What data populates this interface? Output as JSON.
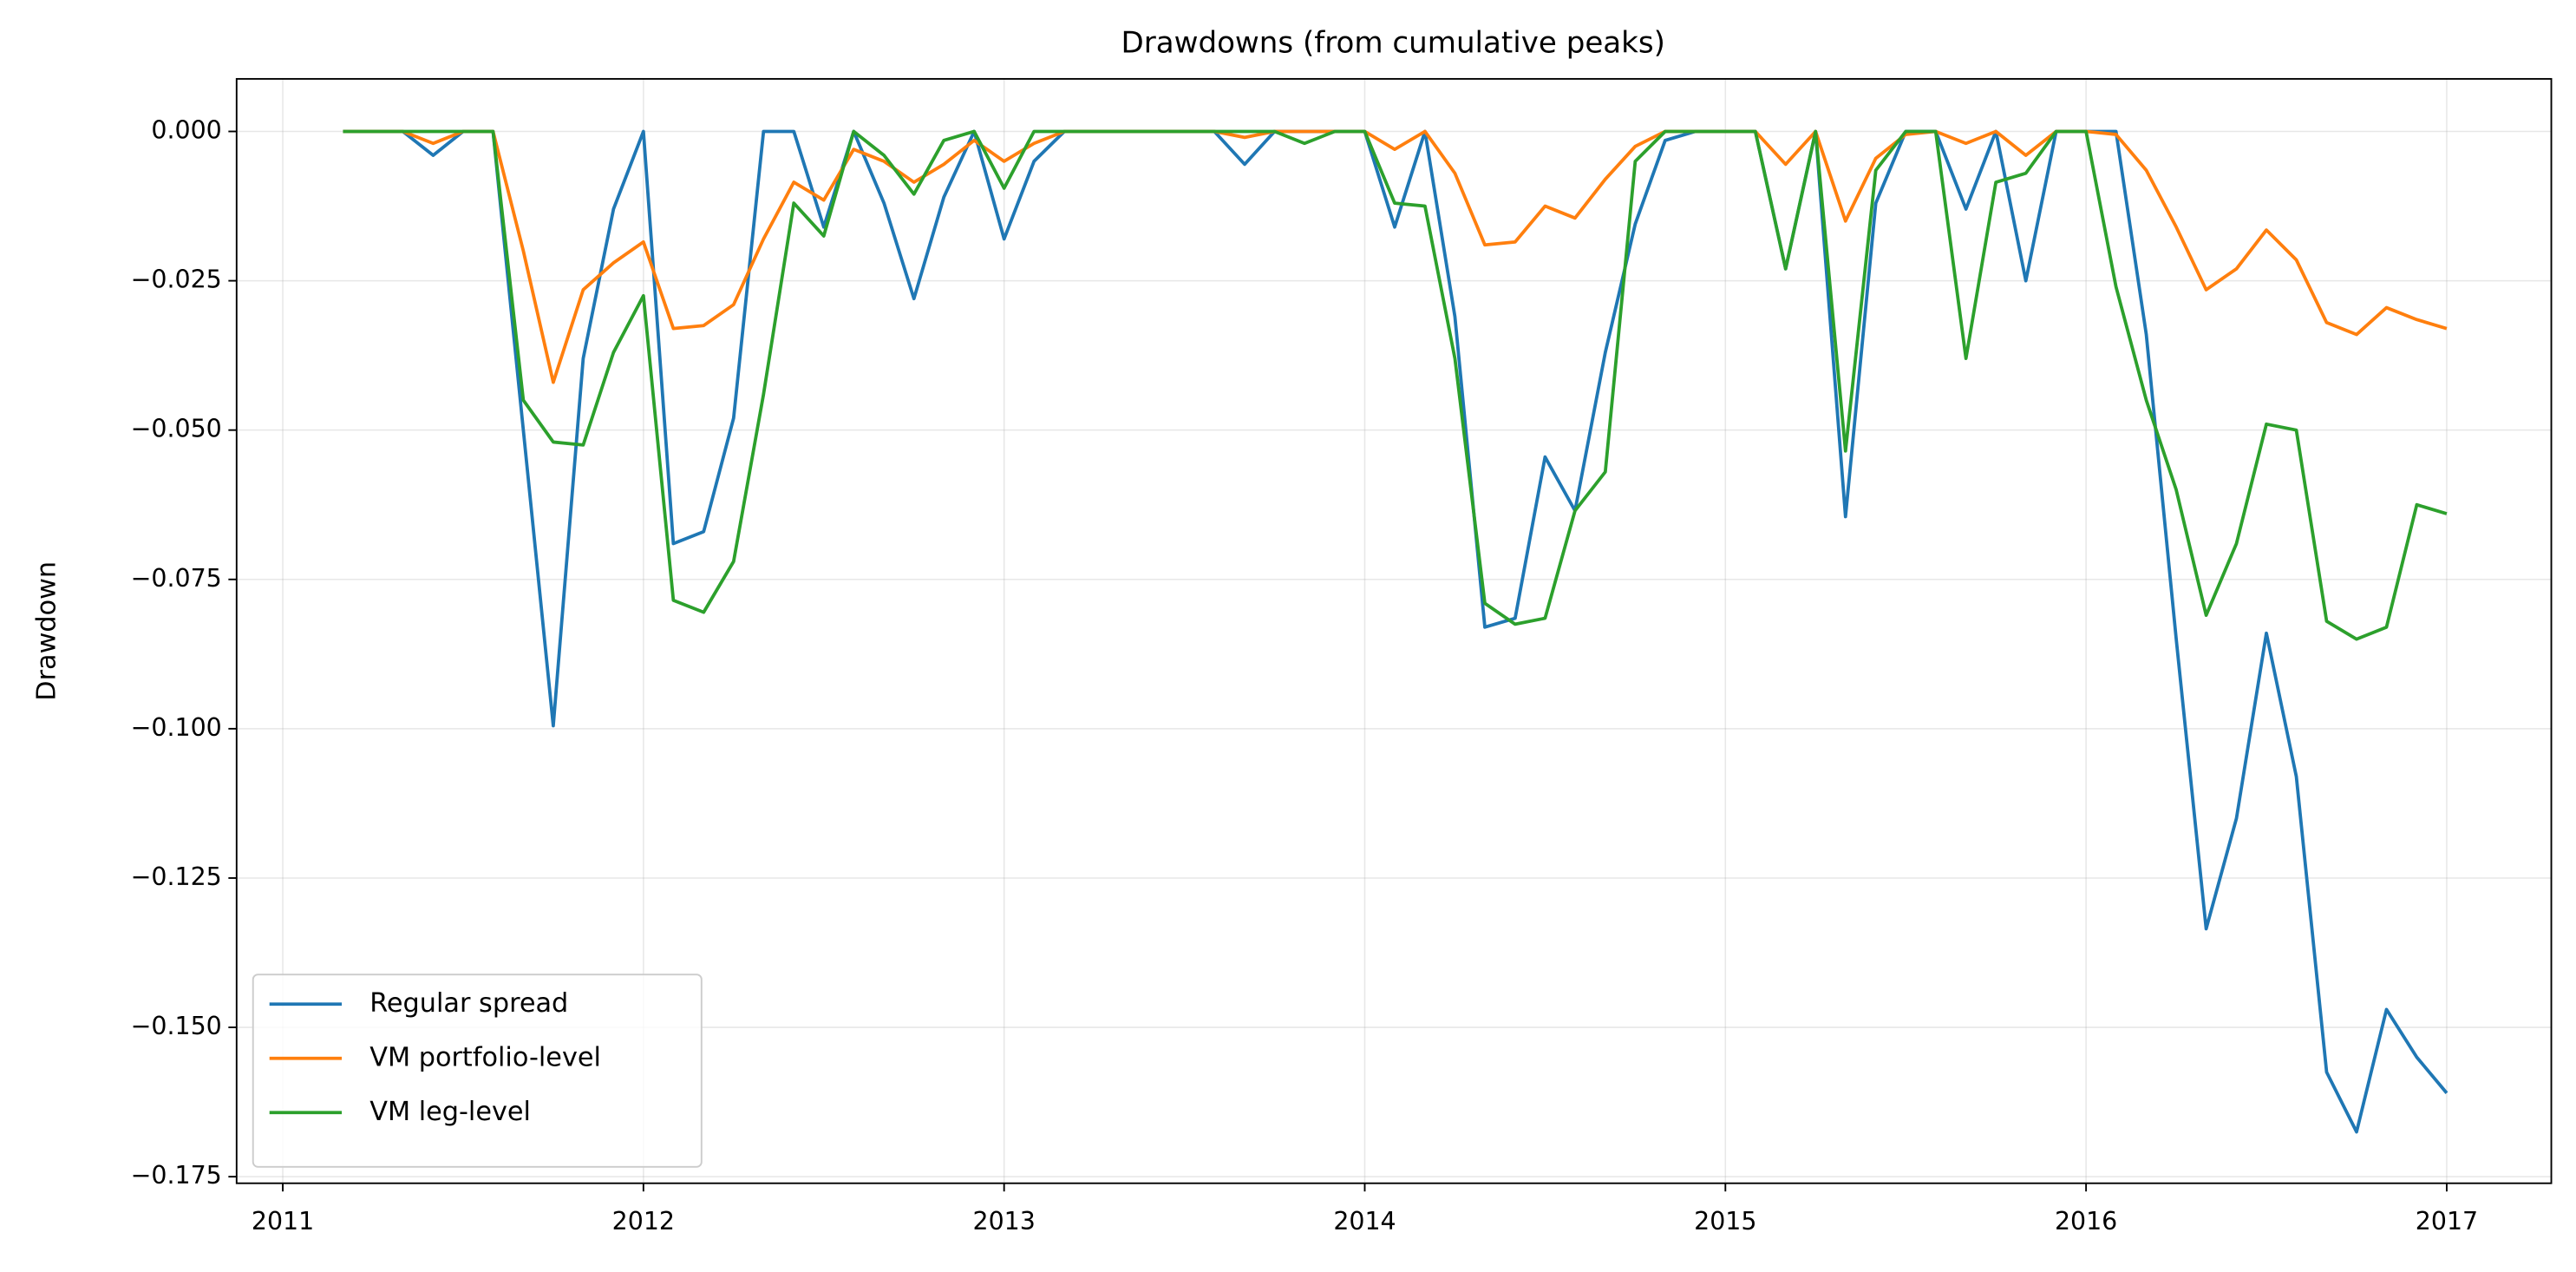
{
  "chart_data": {
    "type": "line",
    "title": "Drawdowns (from cumulative peaks)",
    "y_label": "Drawdown",
    "x": [
      2011.167,
      2011.25,
      2011.333,
      2011.417,
      2011.5,
      2011.583,
      2011.667,
      2011.75,
      2011.833,
      2011.917,
      2012,
      2012.083,
      2012.167,
      2012.25,
      2012.333,
      2012.417,
      2012.5,
      2012.583,
      2012.667,
      2012.75,
      2012.833,
      2012.917,
      2013,
      2013.083,
      2013.167,
      2013.25,
      2013.333,
      2013.417,
      2013.5,
      2013.583,
      2013.667,
      2013.75,
      2013.833,
      2013.917,
      2014,
      2014.083,
      2014.167,
      2014.25,
      2014.333,
      2014.417,
      2014.5,
      2014.583,
      2014.667,
      2014.75,
      2014.833,
      2014.917,
      2015,
      2015.083,
      2015.167,
      2015.25,
      2015.333,
      2015.417,
      2015.5,
      2015.583,
      2015.667,
      2015.75,
      2015.833,
      2015.917,
      2016,
      2016.083,
      2016.167,
      2016.25,
      2016.333,
      2016.417,
      2016.5,
      2016.583,
      2016.667,
      2016.75,
      2016.833,
      2016.917,
      2017
    ],
    "series": [
      {
        "name": "Regular spread",
        "color": "#1f77b4",
        "values": [
          0,
          0,
          0,
          -0.004,
          0,
          0,
          -0.05,
          -0.0995,
          -0.038,
          -0.013,
          0,
          -0.069,
          -0.067,
          -0.048,
          0,
          0,
          -0.016,
          0,
          -0.012,
          -0.028,
          -0.011,
          0,
          -0.018,
          -0.005,
          0,
          0,
          0,
          0,
          0,
          0,
          -0.0055,
          0,
          0,
          0,
          0,
          -0.016,
          0,
          -0.031,
          -0.083,
          -0.0815,
          -0.0545,
          -0.0635,
          -0.037,
          -0.0155,
          -0.0015,
          0,
          0,
          0,
          -0.023,
          0,
          -0.0645,
          -0.012,
          0,
          0,
          -0.013,
          0,
          -0.025,
          0,
          0,
          0,
          -0.034,
          -0.085,
          -0.1335,
          -0.115,
          -0.084,
          -0.108,
          -0.1575,
          -0.1675,
          -0.147,
          -0.155,
          -0.161
        ]
      },
      {
        "name": "VM portfolio-level",
        "color": "#ff7f0e",
        "values": [
          0,
          0,
          0,
          -0.002,
          0,
          0,
          -0.02,
          -0.042,
          -0.0265,
          -0.022,
          -0.0185,
          -0.033,
          -0.0325,
          -0.029,
          -0.018,
          -0.0085,
          -0.0115,
          -0.003,
          -0.005,
          -0.0085,
          -0.0055,
          -0.0015,
          -0.005,
          -0.002,
          0,
          0,
          0,
          0,
          0,
          0,
          -0.001,
          0,
          0,
          0,
          0,
          -0.003,
          0,
          -0.007,
          -0.019,
          -0.0185,
          -0.0125,
          -0.0145,
          -0.008,
          -0.0025,
          0,
          0,
          0,
          0,
          -0.0055,
          0,
          -0.015,
          -0.0045,
          -0.0005,
          0,
          -0.002,
          0,
          -0.004,
          0,
          0,
          -0.0005,
          -0.0065,
          -0.016,
          -0.0265,
          -0.023,
          -0.0165,
          -0.0215,
          -0.032,
          -0.034,
          -0.0295,
          -0.0315,
          -0.033
        ]
      },
      {
        "name": "VM leg-level",
        "color": "#2ca02c",
        "values": [
          0,
          0,
          0,
          0,
          0,
          0,
          -0.045,
          -0.052,
          -0.0525,
          -0.037,
          -0.0275,
          -0.0785,
          -0.0805,
          -0.072,
          -0.044,
          -0.012,
          -0.0175,
          0,
          -0.004,
          -0.0105,
          -0.0015,
          0,
          -0.0095,
          0,
          0,
          0,
          0,
          0,
          0,
          0,
          0,
          0,
          -0.002,
          0,
          0,
          -0.012,
          -0.0125,
          -0.038,
          -0.079,
          -0.0825,
          -0.0815,
          -0.0635,
          -0.057,
          -0.005,
          0,
          0,
          0,
          0,
          -0.023,
          0,
          -0.0535,
          -0.0065,
          0,
          0,
          -0.038,
          -0.0085,
          -0.007,
          0,
          0,
          -0.026,
          -0.045,
          -0.06,
          -0.081,
          -0.069,
          -0.049,
          -0.05,
          -0.082,
          -0.085,
          -0.083,
          -0.0625,
          -0.064
        ]
      }
    ],
    "xlim": [
      2010.872,
      2017.29
    ],
    "xticks": [
      2011,
      2012,
      2013,
      2014,
      2015,
      2016,
      2017
    ],
    "ylim": [
      -0.1761,
      0.0088
    ],
    "yticks": [
      {
        "value": 0,
        "label": "0.000"
      },
      {
        "value": -0.025,
        "label": "−0.025"
      },
      {
        "value": -0.05,
        "label": "−0.050"
      },
      {
        "value": -0.075,
        "label": "−0.075"
      },
      {
        "value": -0.1,
        "label": "−0.100"
      },
      {
        "value": -0.125,
        "label": "−0.125"
      },
      {
        "value": -0.15,
        "label": "−0.150"
      },
      {
        "value": -0.175,
        "label": "−0.175"
      }
    ],
    "grid": true,
    "legend": "lower left"
  }
}
